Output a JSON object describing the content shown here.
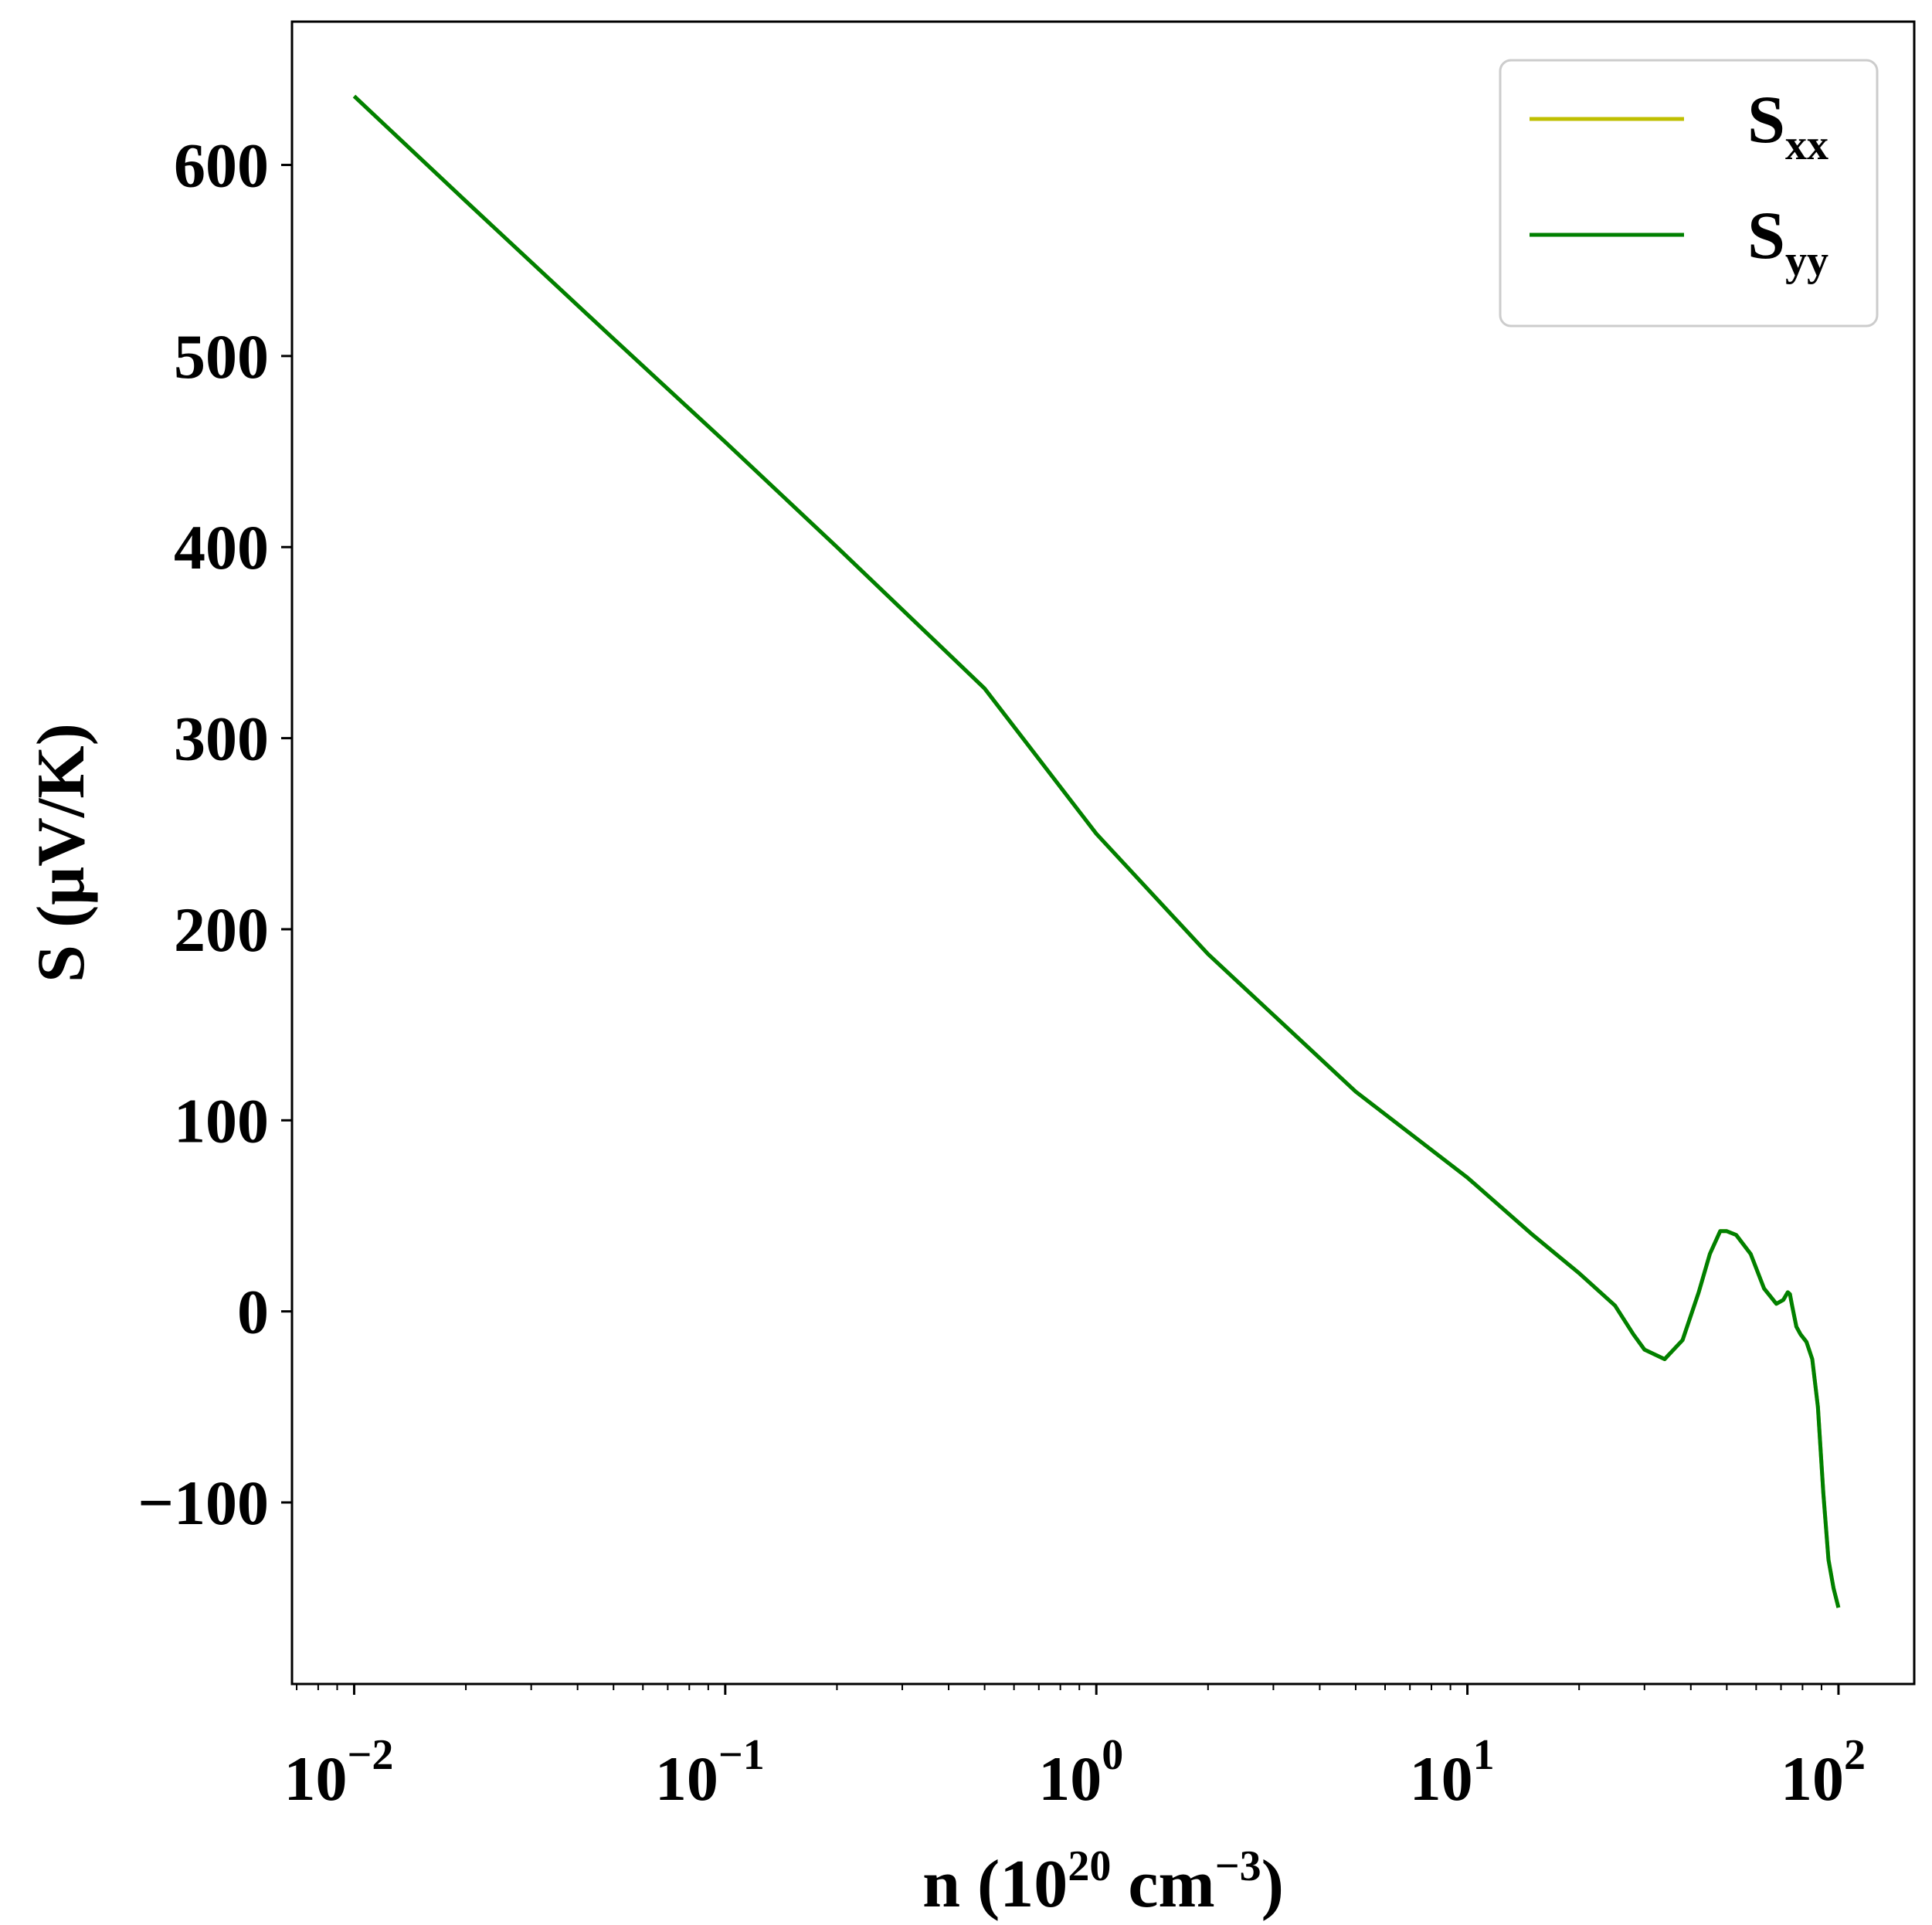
{
  "chart_data": {
    "type": "line",
    "title": "",
    "xlabel": {
      "prefix": "n (10",
      "sup1": "20",
      "mid": " cm",
      "sup2": "−3",
      "suffix": ")"
    },
    "ylabel": "S (μV/K)",
    "xscale": "log",
    "xlim": [
      0.0068,
      160
    ],
    "ylim": [
      -195,
      675
    ],
    "grid": false,
    "legend_position": "top-right",
    "x_ticks": [
      {
        "value": 0.01,
        "base": "10",
        "exp": "−2"
      },
      {
        "value": 0.1,
        "base": "10",
        "exp": "−1"
      },
      {
        "value": 1,
        "base": "10",
        "exp": "0"
      },
      {
        "value": 10,
        "base": "10",
        "exp": "1"
      },
      {
        "value": 100,
        "base": "10",
        "exp": "2"
      }
    ],
    "y_ticks": [
      {
        "value": -100,
        "label": "−100"
      },
      {
        "value": 0,
        "label": "0"
      },
      {
        "value": 100,
        "label": "100"
      },
      {
        "value": 200,
        "label": "200"
      },
      {
        "value": 300,
        "label": "300"
      },
      {
        "value": 400,
        "label": "400"
      },
      {
        "value": 500,
        "label": "500"
      },
      {
        "value": 600,
        "label": "600"
      }
    ],
    "x": [
      0.01,
      0.02,
      0.05,
      0.1,
      0.2,
      0.5,
      1,
      2,
      5,
      10,
      15,
      20,
      25,
      28,
      30,
      34,
      38,
      42,
      45,
      48,
      50,
      53,
      58,
      63,
      68,
      71,
      73,
      74,
      75,
      77,
      79,
      82,
      85,
      88,
      91,
      94,
      97,
      100
    ],
    "series": [
      {
        "name": "xx",
        "label_main": "S",
        "label_sub": "xx",
        "color": "#bfbf00",
        "values": [
          636,
          581,
          509,
          455,
          400,
          326,
          250,
          187,
          115,
          70,
          40,
          20,
          3,
          -12,
          -20,
          -25,
          -15,
          10,
          30,
          42,
          42,
          40,
          30,
          12,
          4,
          6,
          10,
          9,
          3,
          -8,
          -12,
          -16,
          -25,
          -50,
          -95,
          -130,
          -145,
          -155
        ]
      },
      {
        "name": "yy",
        "label_main": "S",
        "label_sub": "yy",
        "color": "#008000",
        "values": [
          636,
          581,
          509,
          455,
          400,
          326,
          250,
          187,
          115,
          70,
          40,
          20,
          3,
          -12,
          -20,
          -25,
          -15,
          10,
          30,
          42,
          42,
          40,
          30,
          12,
          4,
          6,
          10,
          9,
          3,
          -8,
          -12,
          -16,
          -25,
          -50,
          -95,
          -130,
          -145,
          -155
        ]
      }
    ]
  }
}
